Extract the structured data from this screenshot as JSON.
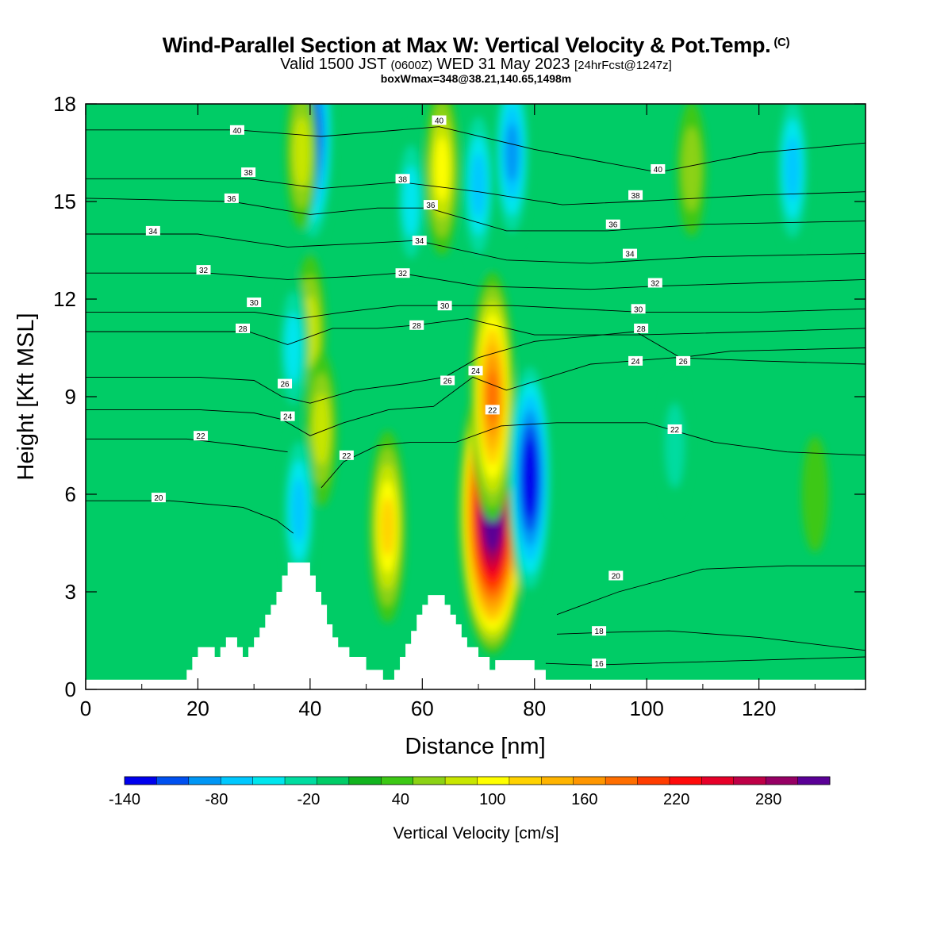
{
  "header": {
    "title": "Wind-Parallel Section at Max W: Vertical Velocity & Pot.Temp.",
    "copyright": "(C)",
    "subtitle_pre": "Valid 1500 JST",
    "subtitle_z": "(0600Z)",
    "subtitle_date": "WED 31 May 2023",
    "subtitle_fcst": "[24hrFcst@1247z]",
    "subtitle2": "boxWmax=348@38.21,140.65,1498m"
  },
  "colors": {
    "background_field": "#00cc66",
    "terrain": "#ffffff",
    "contour_line": "#000000",
    "palette": [
      "#0000ee",
      "#0050f0",
      "#0096f5",
      "#00c8ff",
      "#00e6ee",
      "#00dca0",
      "#00cc66",
      "#12b41e",
      "#3cc814",
      "#8cd214",
      "#c8e600",
      "#ffff00",
      "#ffd200",
      "#ffb400",
      "#ff9600",
      "#ff6e00",
      "#ff3c00",
      "#ff0a0a",
      "#e60028",
      "#be0046",
      "#960064",
      "#5a0096"
    ]
  },
  "chart_data": {
    "type": "heatmap",
    "xlabel": "Distance [nm]",
    "ylabel": "Height [Kft MSL]",
    "xlim": [
      0,
      139
    ],
    "ylim": [
      0,
      18
    ],
    "xticks": [
      "0",
      "20",
      "40",
      "60",
      "80",
      "100",
      "120"
    ],
    "xtick_values": [
      0,
      20,
      40,
      60,
      80,
      100,
      120
    ],
    "yticks": [
      "0",
      "3",
      "6",
      "9",
      "12",
      "15",
      "18"
    ],
    "ytick_values": [
      0,
      3,
      6,
      9,
      12,
      15,
      18
    ],
    "colorbar": {
      "label": "Vertical Velocity [cm/s]",
      "min": -140,
      "max": 320,
      "step": 20,
      "tick_labels": [
        "-140",
        "-80",
        "-20",
        "40",
        "100",
        "160",
        "220",
        "280"
      ],
      "tick_values": [
        -140,
        -80,
        -20,
        40,
        100,
        160,
        220,
        280
      ]
    },
    "terrain_profile": [
      [
        0,
        0.3
      ],
      [
        17,
        0.3
      ],
      [
        18,
        0.6
      ],
      [
        19,
        1.0
      ],
      [
        20,
        1.3
      ],
      [
        22,
        1.3
      ],
      [
        23,
        1.0
      ],
      [
        24,
        1.3
      ],
      [
        25,
        1.6
      ],
      [
        26,
        1.6
      ],
      [
        27,
        1.3
      ],
      [
        28,
        1.0
      ],
      [
        29,
        1.3
      ],
      [
        30,
        1.6
      ],
      [
        31,
        1.9
      ],
      [
        32,
        2.3
      ],
      [
        33,
        2.6
      ],
      [
        34,
        3.0
      ],
      [
        35,
        3.5
      ],
      [
        36,
        3.9
      ],
      [
        39,
        3.9
      ],
      [
        40,
        3.5
      ],
      [
        41,
        3.0
      ],
      [
        42,
        2.6
      ],
      [
        43,
        2.0
      ],
      [
        44,
        1.6
      ],
      [
        45,
        1.3
      ],
      [
        47,
        1.0
      ],
      [
        50,
        0.6
      ],
      [
        53,
        0.3
      ],
      [
        55,
        0.6
      ],
      [
        56,
        1.0
      ],
      [
        57,
        1.4
      ],
      [
        58,
        1.8
      ],
      [
        59,
        2.3
      ],
      [
        60,
        2.6
      ],
      [
        61,
        2.9
      ],
      [
        63,
        2.9
      ],
      [
        64,
        2.6
      ],
      [
        65,
        2.3
      ],
      [
        66,
        2.0
      ],
      [
        67,
        1.6
      ],
      [
        68,
        1.3
      ],
      [
        70,
        1.0
      ],
      [
        72,
        0.6
      ],
      [
        73,
        0.9
      ],
      [
        79,
        0.9
      ],
      [
        80,
        0.6
      ],
      [
        82,
        0.3
      ],
      [
        139,
        0.3
      ]
    ],
    "velocity_features": [
      {
        "x": 40.5,
        "z": 17.0,
        "value": -120
      },
      {
        "x": 38.5,
        "z": 16.5,
        "value": 60
      },
      {
        "x": 40.0,
        "z": 11.0,
        "value": 60
      },
      {
        "x": 42.0,
        "z": 8.0,
        "value": 60
      },
      {
        "x": 37.0,
        "z": 10.5,
        "value": -40
      },
      {
        "x": 38.0,
        "z": 5.5,
        "value": -60
      },
      {
        "x": 53.8,
        "z": 5.0,
        "value": 110
      },
      {
        "x": 63.5,
        "z": 16.0,
        "value": 80
      },
      {
        "x": 70.0,
        "z": 15.5,
        "value": -60
      },
      {
        "x": 58.0,
        "z": 15.0,
        "value": -40
      },
      {
        "x": 72.5,
        "z": 5.5,
        "value": 348
      },
      {
        "x": 72.5,
        "z": 9.0,
        "value": 160
      },
      {
        "x": 79.2,
        "z": 6.5,
        "value": -140
      },
      {
        "x": 76.0,
        "z": 16.5,
        "value": -80
      },
      {
        "x": 105.0,
        "z": 7.5,
        "value": -20
      },
      {
        "x": 108.0,
        "z": 16.0,
        "value": 40
      },
      {
        "x": 126.0,
        "z": 16.0,
        "value": -60
      },
      {
        "x": 130.0,
        "z": 6.0,
        "value": 20
      }
    ],
    "contours": [
      {
        "label": "16",
        "points": [
          [
            82,
            0.8
          ],
          [
            90,
            0.75
          ],
          [
            100,
            0.8
          ],
          [
            120,
            0.9
          ],
          [
            139,
            1.0
          ]
        ]
      },
      {
        "label": "18",
        "points": [
          [
            84,
            1.7
          ],
          [
            92,
            1.75
          ],
          [
            104,
            1.8
          ],
          [
            120,
            1.6
          ],
          [
            139,
            1.2
          ]
        ]
      },
      {
        "label": "20",
        "points": [
          [
            0,
            5.8
          ],
          [
            15,
            5.8
          ],
          [
            28,
            5.6
          ],
          [
            34,
            5.2
          ],
          [
            37,
            4.8
          ]
        ]
      },
      {
        "label": "20",
        "points": [
          [
            84,
            2.3
          ],
          [
            95,
            3.0
          ],
          [
            110,
            3.7
          ],
          [
            125,
            3.8
          ],
          [
            139,
            3.8
          ]
        ]
      },
      {
        "label": "22",
        "points": [
          [
            0,
            7.7
          ],
          [
            18,
            7.7
          ],
          [
            28,
            7.5
          ],
          [
            36,
            7.3
          ]
        ]
      },
      {
        "label": "22",
        "points": [
          [
            42,
            6.2
          ],
          [
            46,
            7.0
          ],
          [
            52,
            7.5
          ],
          [
            58,
            7.6
          ],
          [
            66,
            7.6
          ],
          [
            74,
            8.1
          ],
          [
            84,
            8.2
          ],
          [
            100,
            8.2
          ],
          [
            112,
            7.6
          ],
          [
            125,
            7.3
          ],
          [
            139,
            7.2
          ]
        ]
      },
      {
        "label": "24",
        "points": [
          [
            0,
            8.6
          ],
          [
            20,
            8.6
          ],
          [
            30,
            8.5
          ],
          [
            35,
            8.3
          ],
          [
            40,
            7.8
          ],
          [
            46,
            8.2
          ],
          [
            54,
            8.6
          ],
          [
            62,
            8.7
          ],
          [
            69,
            9.6
          ],
          [
            75,
            9.2
          ],
          [
            90,
            10.0
          ],
          [
            105,
            10.2
          ],
          [
            120,
            10.1
          ],
          [
            139,
            10.0
          ]
        ]
      },
      {
        "label": "26",
        "points": [
          [
            0,
            9.6
          ],
          [
            20,
            9.6
          ],
          [
            30,
            9.5
          ],
          [
            35,
            9.0
          ],
          [
            40,
            8.8
          ],
          [
            48,
            9.2
          ],
          [
            57,
            9.4
          ],
          [
            64,
            9.6
          ],
          [
            70,
            10.2
          ],
          [
            80,
            10.7
          ],
          [
            98,
            11.0
          ],
          [
            106,
            10.2
          ],
          [
            115,
            10.4
          ],
          [
            139,
            10.5
          ]
        ]
      },
      {
        "label": "28",
        "points": [
          [
            0,
            11.0
          ],
          [
            20,
            11.0
          ],
          [
            29,
            11.0
          ],
          [
            36,
            10.6
          ],
          [
            44,
            11.1
          ],
          [
            52,
            11.1
          ],
          [
            59,
            11.2
          ],
          [
            68,
            11.4
          ],
          [
            80,
            10.9
          ],
          [
            99,
            10.9
          ],
          [
            120,
            11.0
          ],
          [
            139,
            11.1
          ]
        ]
      },
      {
        "label": "30",
        "points": [
          [
            0,
            11.6
          ],
          [
            20,
            11.6
          ],
          [
            30,
            11.6
          ],
          [
            38,
            11.4
          ],
          [
            46,
            11.6
          ],
          [
            56,
            11.8
          ],
          [
            64,
            11.8
          ],
          [
            76,
            11.8
          ],
          [
            99,
            11.6
          ],
          [
            120,
            11.6
          ],
          [
            139,
            11.7
          ]
        ]
      },
      {
        "label": "32",
        "points": [
          [
            0,
            12.8
          ],
          [
            22,
            12.8
          ],
          [
            36,
            12.6
          ],
          [
            48,
            12.7
          ],
          [
            56,
            12.8
          ],
          [
            70,
            12.4
          ],
          [
            90,
            12.3
          ],
          [
            102,
            12.4
          ],
          [
            120,
            12.5
          ],
          [
            139,
            12.6
          ]
        ]
      },
      {
        "label": "34",
        "points": [
          [
            0,
            14.0
          ],
          [
            20,
            14.0
          ],
          [
            36,
            13.6
          ],
          [
            48,
            13.7
          ],
          [
            59,
            13.8
          ],
          [
            75,
            13.2
          ],
          [
            90,
            13.1
          ],
          [
            110,
            13.3
          ],
          [
            139,
            13.4
          ]
        ]
      },
      {
        "label": "36",
        "points": [
          [
            0,
            15.1
          ],
          [
            26,
            15.0
          ],
          [
            40,
            14.6
          ],
          [
            52,
            14.8
          ],
          [
            61,
            14.8
          ],
          [
            75,
            14.1
          ],
          [
            93,
            14.1
          ],
          [
            110,
            14.3
          ],
          [
            139,
            14.4
          ]
        ]
      },
      {
        "label": "38",
        "points": [
          [
            0,
            15.7
          ],
          [
            29,
            15.7
          ],
          [
            42,
            15.4
          ],
          [
            56,
            15.6
          ],
          [
            70,
            15.3
          ],
          [
            85,
            14.9
          ],
          [
            98,
            15.0
          ],
          [
            120,
            15.2
          ],
          [
            139,
            15.3
          ]
        ]
      },
      {
        "label": "40",
        "points": [
          [
            0,
            17.2
          ],
          [
            27,
            17.2
          ],
          [
            42,
            17.0
          ],
          [
            63,
            17.3
          ],
          [
            80,
            16.6
          ],
          [
            102,
            15.9
          ],
          [
            120,
            16.5
          ],
          [
            139,
            16.8
          ]
        ]
      }
    ],
    "contour_label_positions": [
      {
        "text": "40",
        "x": 27,
        "z": 17.2
      },
      {
        "text": "38",
        "x": 29,
        "z": 15.9
      },
      {
        "text": "36",
        "x": 26,
        "z": 15.1
      },
      {
        "text": "34",
        "x": 12,
        "z": 14.1
      },
      {
        "text": "32",
        "x": 21,
        "z": 12.9
      },
      {
        "text": "30",
        "x": 30,
        "z": 11.9
      },
      {
        "text": "28",
        "x": 28,
        "z": 11.1
      },
      {
        "text": "26",
        "x": 35.5,
        "z": 9.4
      },
      {
        "text": "24",
        "x": 36,
        "z": 8.4
      },
      {
        "text": "22",
        "x": 20.5,
        "z": 7.8
      },
      {
        "text": "20",
        "x": 13,
        "z": 5.9
      },
      {
        "text": "22",
        "x": 46.5,
        "z": 7.2
      },
      {
        "text": "40",
        "x": 63,
        "z": 17.5
      },
      {
        "text": "38",
        "x": 56.5,
        "z": 15.7
      },
      {
        "text": "36",
        "x": 61.5,
        "z": 14.9
      },
      {
        "text": "34",
        "x": 59.5,
        "z": 13.8
      },
      {
        "text": "32",
        "x": 56.5,
        "z": 12.8
      },
      {
        "text": "30",
        "x": 64,
        "z": 11.8
      },
      {
        "text": "28",
        "x": 59,
        "z": 11.2
      },
      {
        "text": "26",
        "x": 64.5,
        "z": 9.5
      },
      {
        "text": "24",
        "x": 69.5,
        "z": 9.8
      },
      {
        "text": "22",
        "x": 72.5,
        "z": 8.6
      },
      {
        "text": "40",
        "x": 102,
        "z": 16.0
      },
      {
        "text": "38",
        "x": 98,
        "z": 15.2
      },
      {
        "text": "36",
        "x": 94,
        "z": 14.3
      },
      {
        "text": "34",
        "x": 97,
        "z": 13.4
      },
      {
        "text": "32",
        "x": 101.5,
        "z": 12.5
      },
      {
        "text": "30",
        "x": 98.5,
        "z": 11.7
      },
      {
        "text": "28",
        "x": 99,
        "z": 11.1
      },
      {
        "text": "24",
        "x": 98,
        "z": 10.1
      },
      {
        "text": "26",
        "x": 106.5,
        "z": 10.1
      },
      {
        "text": "22",
        "x": 105,
        "z": 8.0
      },
      {
        "text": "20",
        "x": 94.5,
        "z": 3.5
      },
      {
        "text": "18",
        "x": 91.5,
        "z": 1.8
      },
      {
        "text": "16",
        "x": 91.5,
        "z": 0.8
      }
    ]
  }
}
